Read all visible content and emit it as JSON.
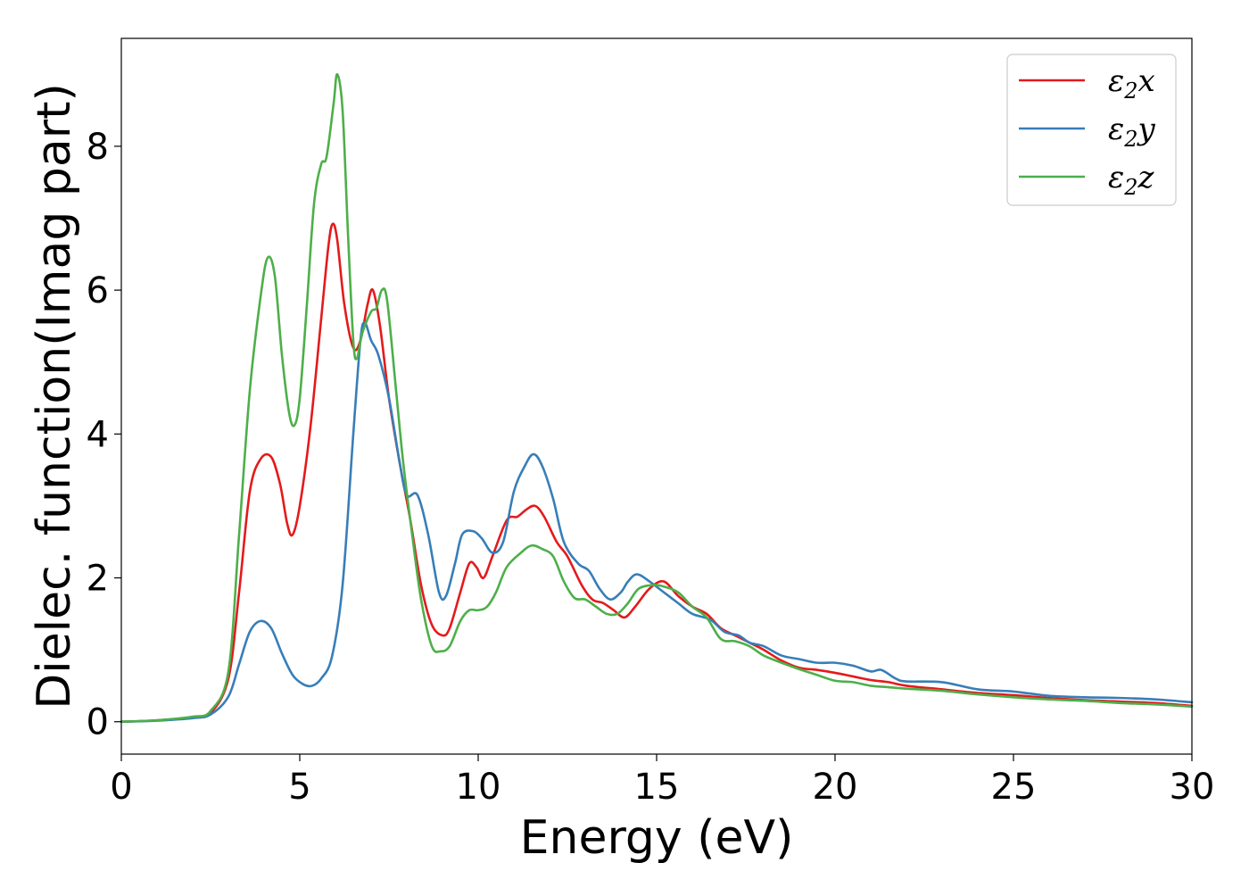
{
  "chart_data": {
    "type": "line",
    "xlabel": "Energy (eV)",
    "ylabel": "Dielec. function(Imag part)",
    "xlim": [
      0,
      30
    ],
    "ylim": [
      -0.45,
      9.5
    ],
    "xticks": [
      0,
      5,
      10,
      15,
      20,
      25,
      30
    ],
    "yticks": [
      0,
      2,
      4,
      6,
      8
    ],
    "grid": false,
    "legend_position": "top-right",
    "series": [
      {
        "name": "ε2x",
        "legend": {
          "base": "ε",
          "sub": "2",
          "axis": "x"
        },
        "color": "#e41a1c",
        "points": [
          [
            0,
            0
          ],
          [
            1,
            0.02
          ],
          [
            2,
            0.06
          ],
          [
            2.5,
            0.12
          ],
          [
            3,
            0.6
          ],
          [
            3.3,
            1.8
          ],
          [
            3.6,
            3.2
          ],
          [
            3.9,
            3.65
          ],
          [
            4.2,
            3.68
          ],
          [
            4.45,
            3.3
          ],
          [
            4.65,
            2.75
          ],
          [
            4.8,
            2.6
          ],
          [
            5.0,
            3.0
          ],
          [
            5.3,
            4.1
          ],
          [
            5.6,
            5.6
          ],
          [
            5.8,
            6.6
          ],
          [
            5.92,
            6.92
          ],
          [
            6.05,
            6.7
          ],
          [
            6.25,
            5.8
          ],
          [
            6.5,
            5.2
          ],
          [
            6.7,
            5.3
          ],
          [
            6.9,
            5.8
          ],
          [
            7.05,
            6.0
          ],
          [
            7.25,
            5.5
          ],
          [
            7.5,
            4.5
          ],
          [
            7.8,
            3.6
          ],
          [
            8.1,
            2.8
          ],
          [
            8.4,
            1.9
          ],
          [
            8.7,
            1.35
          ],
          [
            9.0,
            1.2
          ],
          [
            9.2,
            1.3
          ],
          [
            9.5,
            1.8
          ],
          [
            9.75,
            2.2
          ],
          [
            9.95,
            2.15
          ],
          [
            10.15,
            2.0
          ],
          [
            10.4,
            2.3
          ],
          [
            10.8,
            2.8
          ],
          [
            11.1,
            2.85
          ],
          [
            11.35,
            2.95
          ],
          [
            11.6,
            3.0
          ],
          [
            11.85,
            2.85
          ],
          [
            12.2,
            2.5
          ],
          [
            12.5,
            2.3
          ],
          [
            12.9,
            1.9
          ],
          [
            13.2,
            1.7
          ],
          [
            13.5,
            1.65
          ],
          [
            13.8,
            1.55
          ],
          [
            14.1,
            1.45
          ],
          [
            14.4,
            1.6
          ],
          [
            14.8,
            1.85
          ],
          [
            15.2,
            1.95
          ],
          [
            15.6,
            1.75
          ],
          [
            16.0,
            1.6
          ],
          [
            16.4,
            1.5
          ],
          [
            16.8,
            1.3
          ],
          [
            17.2,
            1.2
          ],
          [
            17.6,
            1.1
          ],
          [
            18.0,
            1.0
          ],
          [
            18.5,
            0.85
          ],
          [
            19.0,
            0.75
          ],
          [
            19.5,
            0.72
          ],
          [
            20.0,
            0.68
          ],
          [
            20.5,
            0.63
          ],
          [
            21.0,
            0.58
          ],
          [
            21.5,
            0.55
          ],
          [
            22.0,
            0.5
          ],
          [
            23.0,
            0.45
          ],
          [
            24.0,
            0.4
          ],
          [
            25.0,
            0.37
          ],
          [
            26.0,
            0.33
          ],
          [
            27.0,
            0.3
          ],
          [
            28.0,
            0.28
          ],
          [
            29.0,
            0.26
          ],
          [
            30.0,
            0.22
          ]
        ]
      },
      {
        "name": "ε2y",
        "legend": {
          "base": "ε",
          "sub": "2",
          "axis": "y"
        },
        "color": "#377eb8",
        "points": [
          [
            0,
            0
          ],
          [
            1,
            0.015
          ],
          [
            2,
            0.05
          ],
          [
            2.5,
            0.1
          ],
          [
            3,
            0.35
          ],
          [
            3.3,
            0.8
          ],
          [
            3.6,
            1.25
          ],
          [
            3.9,
            1.4
          ],
          [
            4.2,
            1.3
          ],
          [
            4.5,
            0.95
          ],
          [
            4.8,
            0.65
          ],
          [
            5.1,
            0.52
          ],
          [
            5.35,
            0.5
          ],
          [
            5.6,
            0.6
          ],
          [
            5.9,
            0.9
          ],
          [
            6.2,
            1.9
          ],
          [
            6.5,
            4.0
          ],
          [
            6.7,
            5.3
          ],
          [
            6.82,
            5.55
          ],
          [
            7.0,
            5.3
          ],
          [
            7.2,
            5.1
          ],
          [
            7.5,
            4.5
          ],
          [
            7.8,
            3.6
          ],
          [
            8.0,
            3.15
          ],
          [
            8.3,
            3.15
          ],
          [
            8.6,
            2.6
          ],
          [
            8.9,
            1.8
          ],
          [
            9.1,
            1.75
          ],
          [
            9.35,
            2.2
          ],
          [
            9.55,
            2.6
          ],
          [
            9.85,
            2.65
          ],
          [
            10.1,
            2.55
          ],
          [
            10.4,
            2.35
          ],
          [
            10.7,
            2.5
          ],
          [
            11.0,
            3.2
          ],
          [
            11.3,
            3.55
          ],
          [
            11.55,
            3.72
          ],
          [
            11.8,
            3.55
          ],
          [
            12.1,
            3.1
          ],
          [
            12.4,
            2.5
          ],
          [
            12.8,
            2.2
          ],
          [
            13.1,
            2.1
          ],
          [
            13.4,
            1.85
          ],
          [
            13.7,
            1.7
          ],
          [
            14.0,
            1.8
          ],
          [
            14.2,
            1.95
          ],
          [
            14.45,
            2.05
          ],
          [
            14.8,
            1.95
          ],
          [
            15.2,
            1.8
          ],
          [
            15.6,
            1.65
          ],
          [
            16.0,
            1.5
          ],
          [
            16.5,
            1.42
          ],
          [
            16.9,
            1.25
          ],
          [
            17.3,
            1.2
          ],
          [
            17.6,
            1.1
          ],
          [
            18.0,
            1.05
          ],
          [
            18.5,
            0.92
          ],
          [
            19.0,
            0.87
          ],
          [
            19.5,
            0.82
          ],
          [
            20.0,
            0.82
          ],
          [
            20.5,
            0.78
          ],
          [
            21.0,
            0.7
          ],
          [
            21.3,
            0.72
          ],
          [
            21.7,
            0.6
          ],
          [
            22.0,
            0.56
          ],
          [
            23.0,
            0.55
          ],
          [
            24.0,
            0.45
          ],
          [
            25.0,
            0.42
          ],
          [
            26.0,
            0.36
          ],
          [
            27.0,
            0.34
          ],
          [
            28.0,
            0.33
          ],
          [
            29.0,
            0.31
          ],
          [
            30.0,
            0.27
          ]
        ]
      },
      {
        "name": "ε2z",
        "legend": {
          "base": "ε",
          "sub": "2",
          "axis": "z"
        },
        "color": "#4daf4a",
        "points": [
          [
            0,
            0
          ],
          [
            1,
            0.02
          ],
          [
            2,
            0.07
          ],
          [
            2.5,
            0.15
          ],
          [
            3,
            0.7
          ],
          [
            3.3,
            2.6
          ],
          [
            3.6,
            4.6
          ],
          [
            3.9,
            5.9
          ],
          [
            4.1,
            6.45
          ],
          [
            4.3,
            6.2
          ],
          [
            4.5,
            5.1
          ],
          [
            4.7,
            4.3
          ],
          [
            4.85,
            4.12
          ],
          [
            5.0,
            4.5
          ],
          [
            5.2,
            5.8
          ],
          [
            5.4,
            7.2
          ],
          [
            5.6,
            7.75
          ],
          [
            5.75,
            7.85
          ],
          [
            5.95,
            8.6
          ],
          [
            6.05,
            9.0
          ],
          [
            6.2,
            8.5
          ],
          [
            6.35,
            6.8
          ],
          [
            6.5,
            5.3
          ],
          [
            6.6,
            5.05
          ],
          [
            6.75,
            5.4
          ],
          [
            7.0,
            5.7
          ],
          [
            7.15,
            5.75
          ],
          [
            7.3,
            6.0
          ],
          [
            7.45,
            5.85
          ],
          [
            7.7,
            4.6
          ],
          [
            7.9,
            3.6
          ],
          [
            8.15,
            2.6
          ],
          [
            8.4,
            1.7
          ],
          [
            8.7,
            1.05
          ],
          [
            8.95,
            0.98
          ],
          [
            9.2,
            1.05
          ],
          [
            9.5,
            1.4
          ],
          [
            9.75,
            1.55
          ],
          [
            10.0,
            1.55
          ],
          [
            10.25,
            1.6
          ],
          [
            10.5,
            1.8
          ],
          [
            10.8,
            2.15
          ],
          [
            11.2,
            2.35
          ],
          [
            11.5,
            2.45
          ],
          [
            11.8,
            2.4
          ],
          [
            12.1,
            2.3
          ],
          [
            12.4,
            1.95
          ],
          [
            12.7,
            1.72
          ],
          [
            13.0,
            1.7
          ],
          [
            13.3,
            1.6
          ],
          [
            13.6,
            1.5
          ],
          [
            13.9,
            1.5
          ],
          [
            14.2,
            1.65
          ],
          [
            14.5,
            1.85
          ],
          [
            14.9,
            1.9
          ],
          [
            15.2,
            1.88
          ],
          [
            15.6,
            1.8
          ],
          [
            16.0,
            1.6
          ],
          [
            16.4,
            1.45
          ],
          [
            16.8,
            1.15
          ],
          [
            17.2,
            1.12
          ],
          [
            17.6,
            1.05
          ],
          [
            18.0,
            0.92
          ],
          [
            18.5,
            0.82
          ],
          [
            19.0,
            0.73
          ],
          [
            19.5,
            0.65
          ],
          [
            20.0,
            0.57
          ],
          [
            20.5,
            0.55
          ],
          [
            21.0,
            0.5
          ],
          [
            21.5,
            0.48
          ],
          [
            22.0,
            0.46
          ],
          [
            23.0,
            0.43
          ],
          [
            24.0,
            0.38
          ],
          [
            25.0,
            0.34
          ],
          [
            26.0,
            0.31
          ],
          [
            27.0,
            0.29
          ],
          [
            28.0,
            0.26
          ],
          [
            29.0,
            0.24
          ],
          [
            30.0,
            0.21
          ]
        ]
      }
    ]
  }
}
